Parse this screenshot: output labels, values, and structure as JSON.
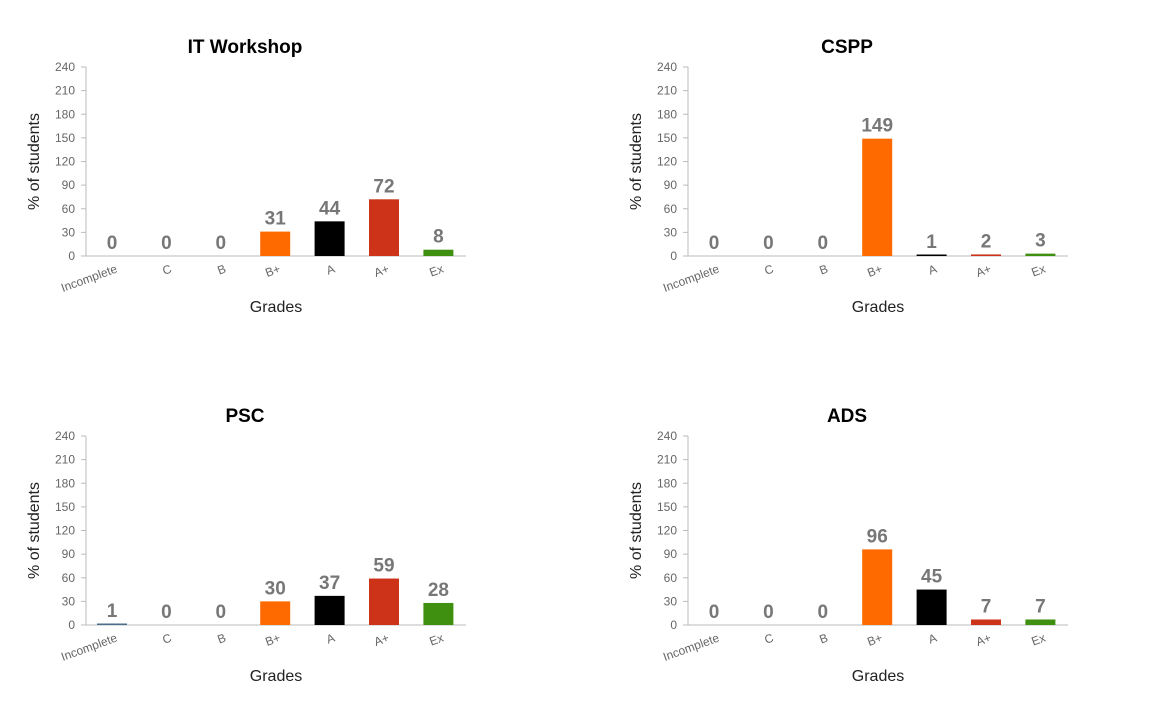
{
  "chart_data": [
    {
      "type": "bar",
      "title": "IT Workshop",
      "xlabel": "Grades",
      "ylabel": "% of students",
      "categories": [
        "Incomplete",
        "C",
        "B",
        "B+",
        "A",
        "A+",
        "Ex"
      ],
      "values": [
        0,
        0,
        0,
        31,
        44,
        72,
        8
      ],
      "yticks": [
        0,
        30,
        60,
        90,
        120,
        150,
        180,
        210,
        240
      ],
      "ylim": [
        0,
        240
      ],
      "grid": false,
      "legend": "none"
    },
    {
      "type": "bar",
      "title": "CSPP",
      "xlabel": "Grades",
      "ylabel": "% of students",
      "categories": [
        "Incomplete",
        "C",
        "B",
        "B+",
        "A",
        "A+",
        "Ex"
      ],
      "values": [
        0,
        0,
        0,
        149,
        1,
        2,
        3
      ],
      "yticks": [
        0,
        30,
        60,
        90,
        120,
        150,
        180,
        210,
        240
      ],
      "ylim": [
        0,
        240
      ],
      "grid": false,
      "legend": "none"
    },
    {
      "type": "bar",
      "title": "PSC",
      "xlabel": "Grades",
      "ylabel": "% of students",
      "categories": [
        "Incomplete",
        "C",
        "B",
        "B+",
        "A",
        "A+",
        "Ex"
      ],
      "values": [
        1,
        0,
        0,
        30,
        37,
        59,
        28
      ],
      "yticks": [
        0,
        30,
        60,
        90,
        120,
        150,
        180,
        210,
        240
      ],
      "ylim": [
        0,
        240
      ],
      "grid": false,
      "legend": "none"
    },
    {
      "type": "bar",
      "title": "ADS",
      "xlabel": "Grades",
      "ylabel": "% of students",
      "categories": [
        "Incomplete",
        "C",
        "B",
        "B+",
        "A",
        "A+",
        "Ex"
      ],
      "values": [
        0,
        0,
        0,
        96,
        45,
        7,
        7
      ],
      "yticks": [
        0,
        30,
        60,
        90,
        120,
        150,
        180,
        210,
        240
      ],
      "ylim": [
        0,
        240
      ],
      "grid": false,
      "legend": "none"
    }
  ],
  "colors": {
    "categories": [
      "#4a6d8c",
      "#6fa8dc",
      "#3d85c6",
      "#ff6a00",
      "#000000",
      "#cc3319",
      "#3f8f10"
    ],
    "axis": "#bbbbbb",
    "tick_text": "#666666",
    "value_label": "#777777",
    "title": "#000000",
    "axis_title": "#222222"
  }
}
